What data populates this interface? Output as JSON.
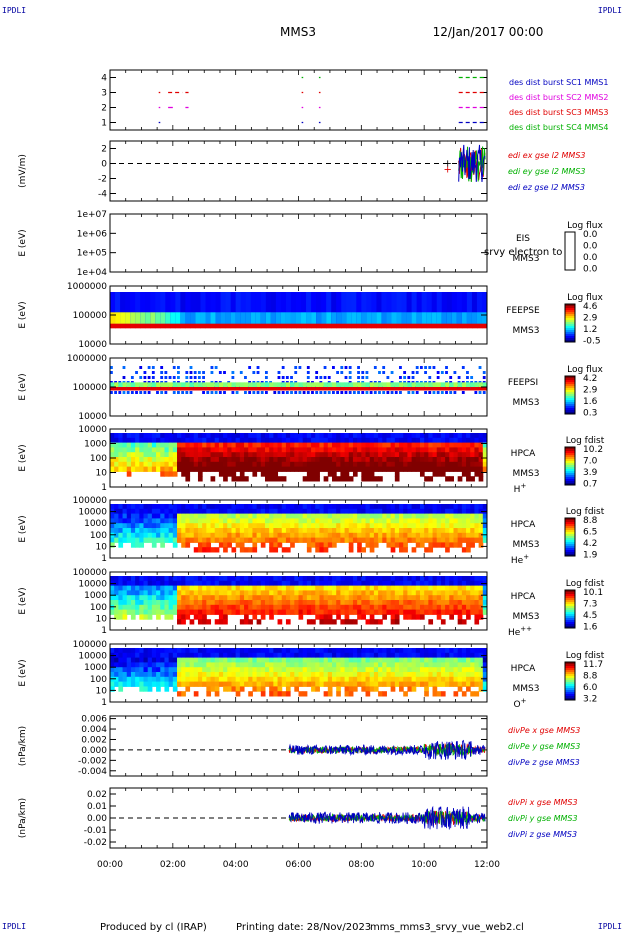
{
  "header": {
    "corner_label": "IPDLI",
    "spacecraft": "MMS3",
    "date_time": "12/Jan/2017 00:00"
  },
  "footer": {
    "produced_by": "Produced by cl (IRAP)",
    "printing_date": "Printing date: 28/Nov/2023",
    "file_name": "mms_mms3_srvy_vue_web2.cl"
  },
  "x_axis": {
    "ticks": [
      "00:00",
      "02:00",
      "04:00",
      "06:00",
      "08:00",
      "10:00",
      "12:00"
    ],
    "range_hours": [
      0,
      12
    ]
  },
  "colors": {
    "red": "#e00000",
    "green": "#00b000",
    "blue": "#0000c0",
    "magenta": "#e000e0",
    "spectro_bg": "#ffffff"
  },
  "chart_data": [
    {
      "type": "scatter",
      "panel": "burst",
      "ylim": [
        0.5,
        4.5
      ],
      "yticks": [
        "1",
        "2",
        "3",
        "4"
      ],
      "ylabel": "",
      "series": [
        {
          "name": "des dist burst SC1 MMS1",
          "color": "#0000c0",
          "y": 1,
          "segments": [
            [
              1.55,
              1.6
            ],
            [
              6.1,
              6.15
            ],
            [
              6.65,
              6.7
            ],
            [
              11.1,
              11.9
            ]
          ]
        },
        {
          "name": "des dist burst SC2 MMS2",
          "color": "#e000e0",
          "y": 2,
          "segments": [
            [
              1.55,
              1.6
            ],
            [
              1.85,
              2.0
            ],
            [
              2.4,
              2.5
            ],
            [
              6.1,
              6.15
            ],
            [
              6.65,
              6.7
            ],
            [
              11.1,
              11.9
            ]
          ]
        },
        {
          "name": "des dist burst SC3 MMS3",
          "color": "#e00000",
          "y": 3,
          "segments": [
            [
              1.55,
              1.6
            ],
            [
              1.85,
              2.3
            ],
            [
              2.4,
              2.5
            ],
            [
              6.1,
              6.15
            ],
            [
              6.65,
              6.7
            ],
            [
              11.1,
              11.9
            ]
          ]
        },
        {
          "name": "des dist burst SC4 MMS4",
          "color": "#00b000",
          "y": 4,
          "segments": [
            [
              6.1,
              6.15
            ],
            [
              6.65,
              6.7
            ],
            [
              11.1,
              11.9
            ]
          ]
        }
      ]
    },
    {
      "type": "line",
      "panel": "edi",
      "ylabel": "(mV/m)",
      "ylim": [
        -5,
        3
      ],
      "yticks": [
        "-4",
        "-2",
        "0",
        "2"
      ],
      "series": [
        {
          "name": "edi ex gse l2 MMS3",
          "color": "#e00000"
        },
        {
          "name": "edi ey gse l2 MMS3",
          "color": "#00b000"
        },
        {
          "name": "edi ez gse l2 MMS3",
          "color": "#0000c0"
        }
      ],
      "data_start_hour": 10.6
    },
    {
      "type": "heatmap",
      "panel": "eis",
      "ylabel": "E (eV)",
      "yticks": [
        "1e+07",
        "1e+06",
        "1e+05",
        "1e+04"
      ],
      "instrument": "EIS",
      "spacecraft": "MMS3",
      "overlay_text": "srvy electron to",
      "colorbar_title": "Log flux",
      "colorbar_ticks": [
        "0.0",
        "0.0",
        "0.0",
        "0.0"
      ],
      "empty": true
    },
    {
      "type": "heatmap",
      "panel": "feeps_e",
      "ylabel": "E (eV)",
      "yticks": [
        "1000000",
        "100000",
        "10000"
      ],
      "instrument": "FEEPSE",
      "spacecraft": "MMS3",
      "colorbar_title": "Log flux",
      "colorbar_ticks": [
        "4.6",
        "2.9",
        "1.2",
        "-0.5"
      ]
    },
    {
      "type": "heatmap",
      "panel": "feeps_i",
      "ylabel": "E (eV)",
      "yticks": [
        "1000000",
        "100000",
        "10000"
      ],
      "instrument": "FEEPSI",
      "spacecraft": "MMS3",
      "colorbar_title": "Log flux",
      "colorbar_ticks": [
        "4.2",
        "2.9",
        "1.6",
        "0.3"
      ]
    },
    {
      "type": "heatmap",
      "panel": "hpca_h",
      "ylabel": "E (eV)",
      "yticks": [
        "10000",
        "1000",
        "100",
        "10",
        "1"
      ],
      "instrument": "HPCA",
      "spacecraft": "MMS3",
      "species": "H+",
      "colorbar_title": "Log fdist",
      "colorbar_ticks": [
        "10.2",
        "7.0",
        "3.9",
        "0.7"
      ]
    },
    {
      "type": "heatmap",
      "panel": "hpca_he",
      "ylabel": "E (eV)",
      "yticks": [
        "100000",
        "10000",
        "1000",
        "100",
        "10",
        "1"
      ],
      "instrument": "HPCA",
      "spacecraft": "MMS3",
      "species": "He+",
      "colorbar_title": "Log fdist",
      "colorbar_ticks": [
        "8.8",
        "6.5",
        "4.2",
        "1.9"
      ]
    },
    {
      "type": "heatmap",
      "panel": "hpca_hepp",
      "ylabel": "E (eV)",
      "yticks": [
        "100000",
        "10000",
        "1000",
        "100",
        "10",
        "1"
      ],
      "instrument": "HPCA",
      "spacecraft": "MMS3",
      "species": "He++",
      "colorbar_title": "Log fdist",
      "colorbar_ticks": [
        "10.1",
        "7.3",
        "4.5",
        "1.6"
      ]
    },
    {
      "type": "heatmap",
      "panel": "hpca_o",
      "ylabel": "E (eV)",
      "yticks": [
        "100000",
        "10000",
        "1000",
        "100",
        "10",
        "1"
      ],
      "instrument": "HPCA",
      "spacecraft": "MMS3",
      "species": "O+",
      "colorbar_title": "Log fdist",
      "colorbar_ticks": [
        "11.7",
        "8.8",
        "6.0",
        "3.2"
      ]
    },
    {
      "type": "line",
      "panel": "divpe",
      "ylabel": "(nPa/km)",
      "ylim": [
        -0.005,
        0.0065
      ],
      "yticks": [
        "0.006",
        "0.004",
        "0.002",
        "0.000",
        "-0.002",
        "-0.004"
      ],
      "series": [
        {
          "name": "divPe x gse MMS3",
          "color": "#e00000"
        },
        {
          "name": "divPe y gse MMS3",
          "color": "#00b000"
        },
        {
          "name": "divPe z gse MMS3",
          "color": "#0000c0"
        }
      ],
      "data_start_hour": 5.7
    },
    {
      "type": "line",
      "panel": "divpi",
      "ylabel": "(nPa/km)",
      "ylim": [
        -0.025,
        0.025
      ],
      "yticks": [
        "0.02",
        "0.01",
        "0.00",
        "-0.01",
        "-0.02"
      ],
      "series": [
        {
          "name": "divPi x gse MMS3",
          "color": "#e00000"
        },
        {
          "name": "divPi y gse MMS3",
          "color": "#00b000"
        },
        {
          "name": "divPi z gse MMS3",
          "color": "#0000c0"
        }
      ],
      "data_start_hour": 5.7
    }
  ]
}
